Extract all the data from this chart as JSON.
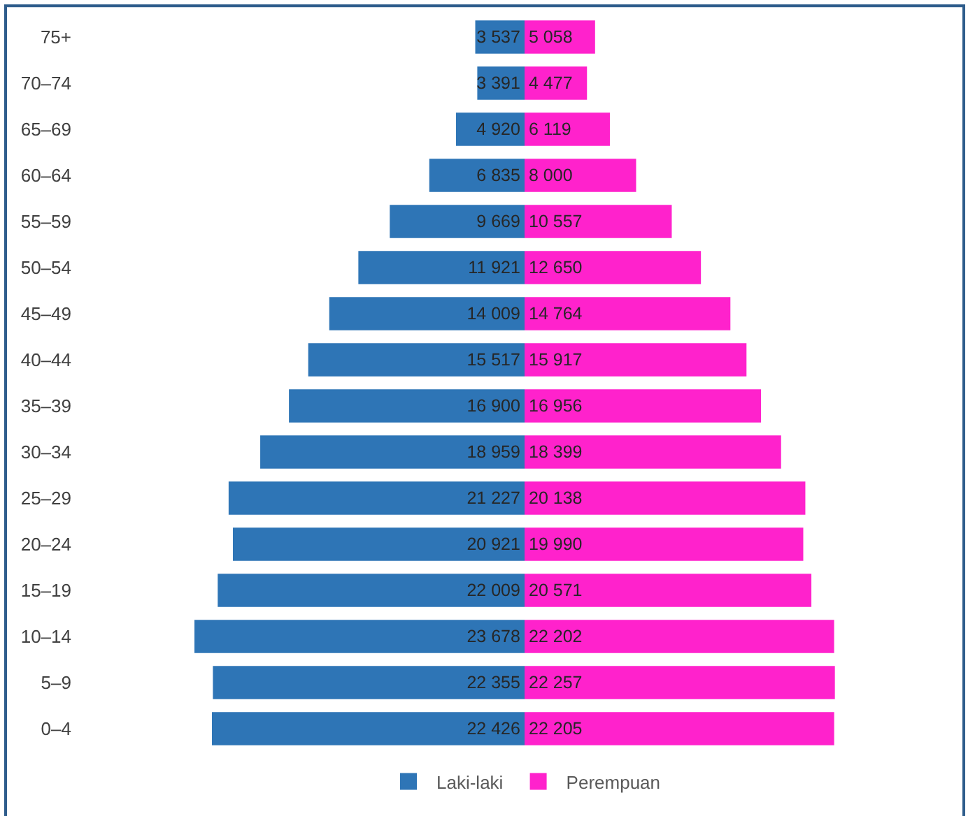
{
  "chart_data": [
    {
      "type": "bar",
      "orientation": "horizontal",
      "legend": "bottom",
      "tick_labels": "y",
      "categories": [
        "75+",
        "70–74",
        "65–69",
        "60–64",
        "55–59",
        "50–54",
        "45–49",
        "40–44",
        "35–39",
        "30–34",
        "25–29",
        "20–24",
        "15–19",
        "10–14",
        "5–9",
        "0–4"
      ],
      "series": [
        {
          "name": "Laki-laki",
          "color": "#2e75b6",
          "values": [
            3537,
            3391,
            4920,
            6835,
            9669,
            11921,
            14009,
            15517,
            16900,
            18959,
            21227,
            20921,
            22009,
            23678,
            22355,
            22426
          ],
          "value_labels": [
            "3 537",
            "3 391",
            "4 920",
            "6 835",
            "9 669",
            "11 921",
            "14 009",
            "15 517",
            "16 900",
            "18 959",
            "21 227",
            "20 921",
            "22 009",
            "23 678",
            "22 355",
            "22 426"
          ]
        }
      ]
    },
    {
      "type": "bar",
      "orientation": "horizontal",
      "legend": "bottom",
      "tick_labels": false,
      "categories": [
        null,
        null,
        null,
        null,
        null,
        null,
        null,
        null,
        null,
        null,
        null,
        null,
        null,
        null,
        null,
        null
      ],
      "series": [
        {
          "name": "Perempuan",
          "color": "#ff22cc",
          "values": [
            5058,
            4477,
            6119,
            8000,
            10557,
            12650,
            14764,
            15917,
            16956,
            18399,
            20138,
            19990,
            20571,
            22202,
            22257,
            22205
          ],
          "value_labels": [
            "5 058",
            "4 477",
            "6 119",
            "8 000",
            "10 557",
            "12 650",
            "14 764",
            "15 917",
            "16 956",
            "18 399",
            "20 138",
            "19 990",
            "20 571",
            "22 202",
            "22 257",
            "22 205"
          ]
        }
      ]
    }
  ]
}
